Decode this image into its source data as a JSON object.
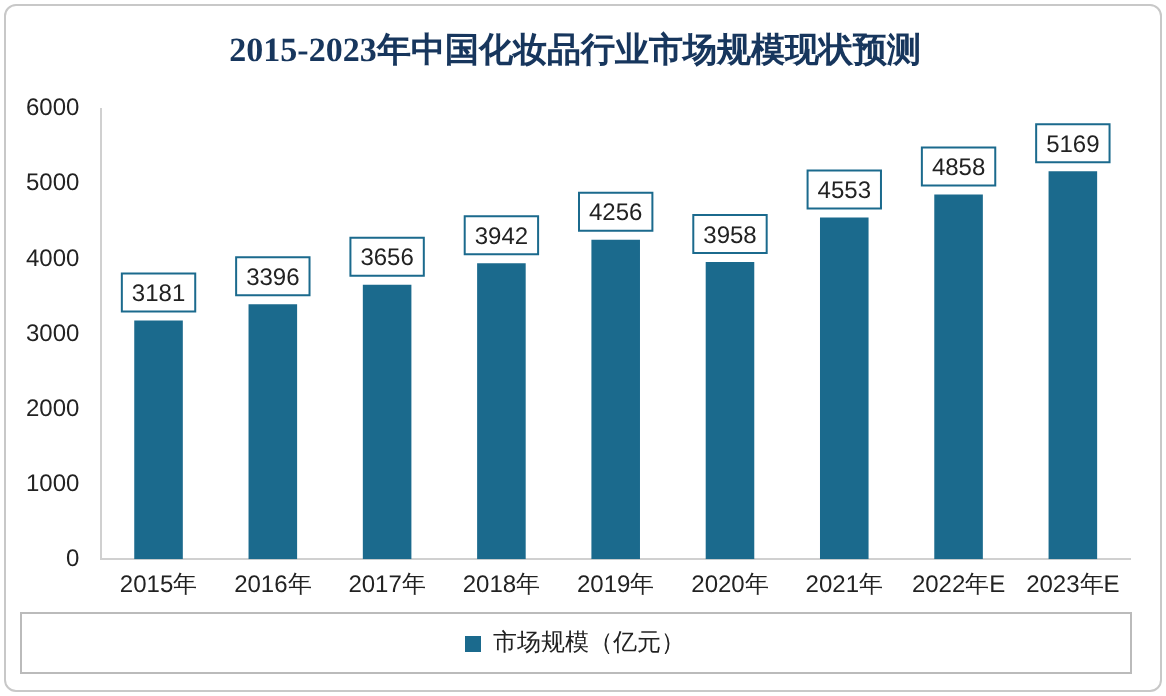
{
  "chart_data": {
    "type": "bar",
    "title": "2015-2023年中国化妆品行业市场规模现状预测",
    "categories": [
      "2015年",
      "2016年",
      "2017年",
      "2018年",
      "2019年",
      "2020年",
      "2021年",
      "2022年E",
      "2023年E"
    ],
    "series": [
      {
        "name": "市场规模（亿元）",
        "color": "#1b6a8d",
        "values": [
          3181,
          3396,
          3656,
          3942,
          4256,
          3958,
          4553,
          4858,
          5169
        ]
      }
    ],
    "ylim": [
      0,
      6000
    ],
    "yticks": [
      0,
      1000,
      2000,
      3000,
      4000,
      5000,
      6000
    ],
    "grid": false,
    "legend": "bottom",
    "data_labels": true
  }
}
